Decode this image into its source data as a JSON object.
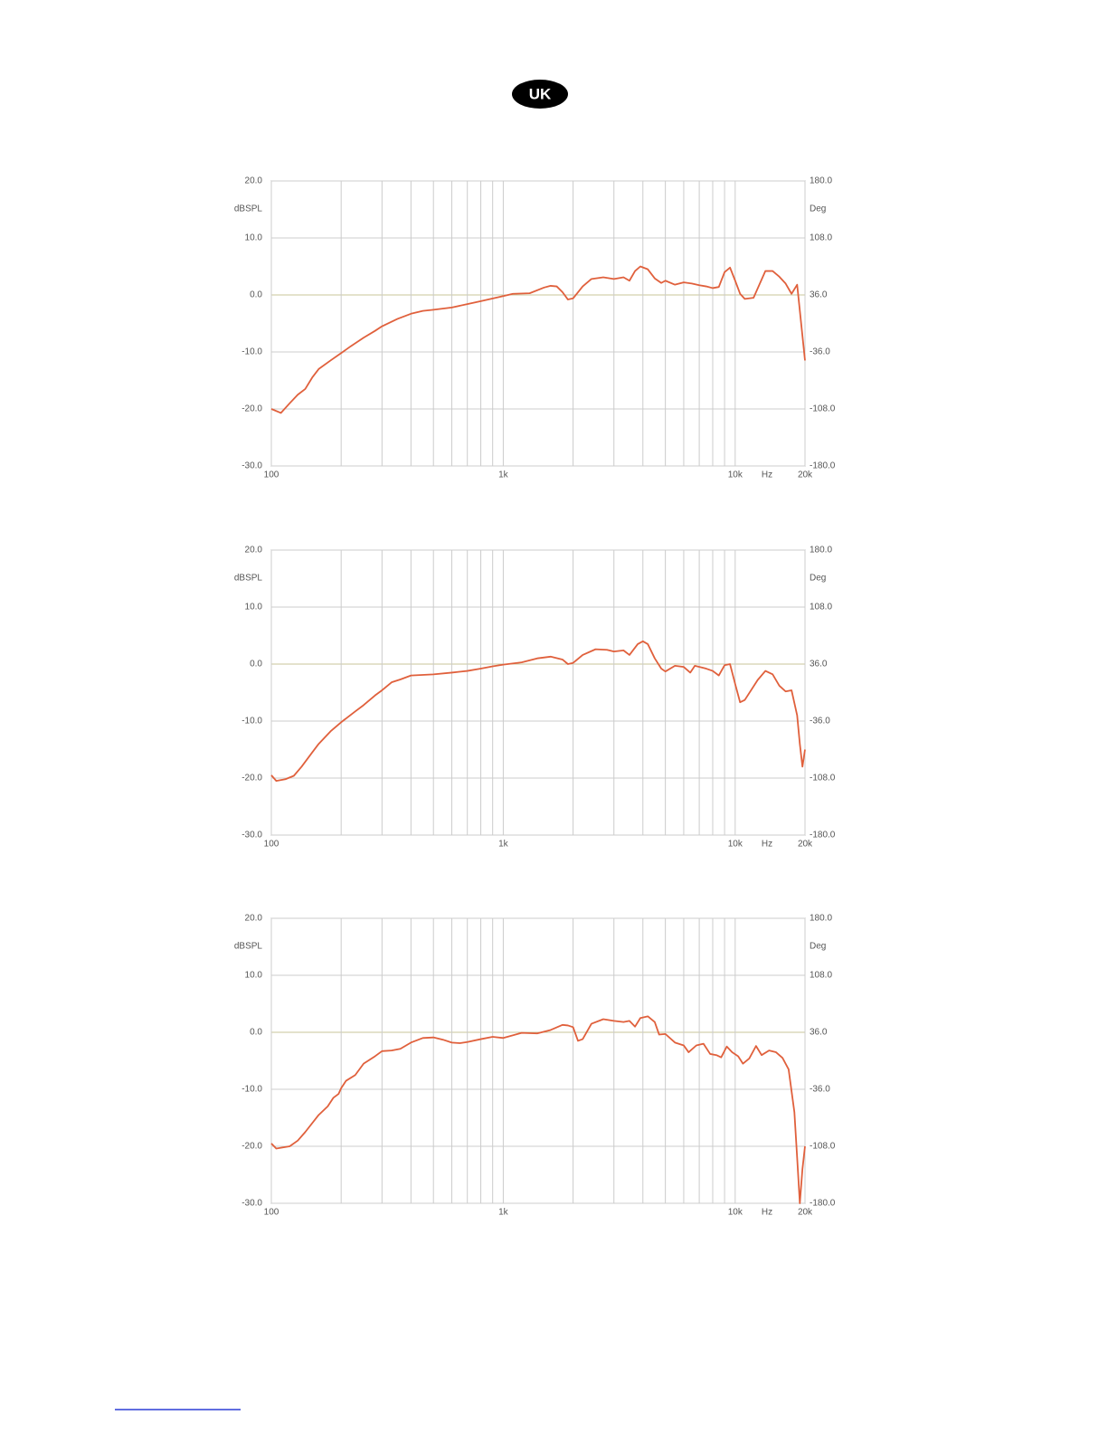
{
  "header": {
    "badge": "UK"
  },
  "chart_data": [
    {
      "type": "line",
      "x_scale": "log",
      "grid": true,
      "x_label": "Hz",
      "y_label": "dBSPL",
      "y2_label": "Deg",
      "xlim": [
        100,
        20000
      ],
      "ylim": [
        -30,
        20
      ],
      "y2lim": [
        -180,
        180
      ],
      "xticks": [
        100,
        {
          "value": 1000,
          "label": "1k"
        },
        {
          "value": 10000,
          "label": "10k"
        },
        {
          "value": 20000,
          "label": "20k"
        }
      ],
      "xminor": [
        200,
        300,
        400,
        500,
        600,
        700,
        800,
        900,
        2000,
        3000,
        4000,
        5000,
        6000,
        7000,
        8000,
        9000
      ],
      "yticks": [
        {
          "value": 20,
          "label": "20.0"
        },
        {
          "value": 10,
          "label": "10.0"
        },
        {
          "value": 0,
          "label": "0.0"
        },
        {
          "value": -10,
          "label": "-10.0"
        },
        {
          "value": -20,
          "label": "-20.0"
        },
        {
          "value": -30,
          "label": "-30.0"
        }
      ],
      "y2ticks": [
        {
          "value": 180,
          "label": "180.0"
        },
        {
          "value": 108,
          "label": "108.0"
        },
        {
          "value": 36,
          "label": "36.0"
        },
        {
          "value": -36,
          "label": "-36.0"
        },
        {
          "value": -108,
          "label": "-108.0"
        },
        {
          "value": -180,
          "label": "-180.0"
        }
      ],
      "color": "#e0603c",
      "x": [
        100,
        110,
        120,
        130,
        140,
        150,
        160,
        180,
        200,
        220,
        250,
        280,
        300,
        350,
        400,
        450,
        500,
        600,
        700,
        800,
        1000,
        1100,
        1300,
        1500,
        1600,
        1700,
        1800,
        1900,
        2000,
        2200,
        2400,
        2700,
        3000,
        3300,
        3500,
        3700,
        3900,
        4200,
        4500,
        4800,
        5000,
        5500,
        6000,
        6500,
        7000,
        7500,
        8000,
        8500,
        9000,
        9500,
        10000,
        10500,
        11000,
        12000,
        13500,
        14500,
        15500,
        16500,
        17500,
        18500,
        20000
      ],
      "values": [
        -20,
        -20.7,
        -19,
        -17.5,
        -16.5,
        -14.5,
        -13,
        -11.5,
        -10.2,
        -9,
        -7.5,
        -6.3,
        -5.5,
        -4.2,
        -3.3,
        -2.8,
        -2.6,
        -2.2,
        -1.6,
        -1.1,
        -0.2,
        0.2,
        0.3,
        1.3,
        1.6,
        1.5,
        0.5,
        -0.8,
        -0.6,
        1.5,
        2.8,
        3.1,
        2.8,
        3.1,
        2.5,
        4.2,
        5,
        4.5,
        2.9,
        2.1,
        2.5,
        1.8,
        2.2,
        2,
        1.7,
        1.5,
        1.2,
        1.4,
        4,
        4.8,
        2.5,
        0.2,
        -0.7,
        -0.5,
        4.2,
        4.2,
        3.2,
        2,
        0.2,
        1.8,
        -11.5
      ]
    },
    {
      "type": "line",
      "x_scale": "log",
      "grid": true,
      "x_label": "Hz",
      "y_label": "dBSPL",
      "y2_label": "Deg",
      "xlim": [
        100,
        20000
      ],
      "ylim": [
        -30,
        20
      ],
      "y2lim": [
        -180,
        180
      ],
      "xticks": [
        100,
        {
          "value": 1000,
          "label": "1k"
        },
        {
          "value": 10000,
          "label": "10k"
        },
        {
          "value": 20000,
          "label": "20k"
        }
      ],
      "xminor": [
        200,
        300,
        400,
        500,
        600,
        700,
        800,
        900,
        2000,
        3000,
        4000,
        5000,
        6000,
        7000,
        8000,
        9000
      ],
      "yticks": [
        {
          "value": 20,
          "label": "20.0"
        },
        {
          "value": 10,
          "label": "10.0"
        },
        {
          "value": 0,
          "label": "0.0"
        },
        {
          "value": -10,
          "label": "-10.0"
        },
        {
          "value": -20,
          "label": "-20.0"
        },
        {
          "value": -30,
          "label": "-30.0"
        }
      ],
      "y2ticks": [
        {
          "value": 180,
          "label": "180.0"
        },
        {
          "value": 108,
          "label": "108.0"
        },
        {
          "value": 36,
          "label": "36.0"
        },
        {
          "value": -36,
          "label": "-36.0"
        },
        {
          "value": -108,
          "label": "-108.0"
        },
        {
          "value": -180,
          "label": "-180.0"
        }
      ],
      "color": "#e0603c",
      "x": [
        100,
        105,
        115,
        125,
        135,
        150,
        160,
        180,
        200,
        230,
        250,
        280,
        300,
        330,
        360,
        400,
        500,
        600,
        700,
        800,
        900,
        1000,
        1200,
        1400,
        1600,
        1800,
        1900,
        2000,
        2200,
        2500,
        2800,
        3000,
        3300,
        3500,
        3800,
        4000,
        4200,
        4500,
        4800,
        5000,
        5500,
        6000,
        6400,
        6700,
        7500,
        8000,
        8500,
        9000,
        9500,
        10000,
        10500,
        11000,
        12500,
        13500,
        14500,
        15500,
        16500,
        17500,
        18500,
        19000,
        19500,
        20000
      ],
      "values": [
        -19.5,
        -20.5,
        -20.2,
        -19.6,
        -18,
        -15.5,
        -14,
        -11.8,
        -10.2,
        -8.3,
        -7.2,
        -5.5,
        -4.6,
        -3.2,
        -2.7,
        -2,
        -1.8,
        -1.5,
        -1.2,
        -0.8,
        -0.4,
        -0.1,
        0.3,
        1,
        1.3,
        0.8,
        0,
        0.2,
        1.6,
        2.6,
        2.5,
        2.2,
        2.4,
        1.6,
        3.5,
        4,
        3.5,
        1,
        -0.8,
        -1.3,
        -0.3,
        -0.5,
        -1.5,
        -0.3,
        -0.8,
        -1.2,
        -2,
        -0.2,
        0,
        -3.5,
        -6.7,
        -6.3,
        -2.8,
        -1.2,
        -1.8,
        -3.8,
        -4.8,
        -4.6,
        -9,
        -14,
        -18,
        -15
      ]
    },
    {
      "type": "line",
      "x_scale": "log",
      "grid": true,
      "x_label": "Hz",
      "y_label": "dBSPL",
      "y2_label": "Deg",
      "xlim": [
        100,
        20000
      ],
      "ylim": [
        -30,
        20
      ],
      "y2lim": [
        -180,
        180
      ],
      "xticks": [
        100,
        {
          "value": 1000,
          "label": "1k"
        },
        {
          "value": 10000,
          "label": "10k"
        },
        {
          "value": 20000,
          "label": "20k"
        }
      ],
      "xminor": [
        200,
        300,
        400,
        500,
        600,
        700,
        800,
        900,
        2000,
        3000,
        4000,
        5000,
        6000,
        7000,
        8000,
        9000
      ],
      "yticks": [
        {
          "value": 20,
          "label": "20.0"
        },
        {
          "value": 10,
          "label": "10.0"
        },
        {
          "value": 0,
          "label": "0.0"
        },
        {
          "value": -10,
          "label": "-10.0"
        },
        {
          "value": -20,
          "label": "-20.0"
        },
        {
          "value": -30,
          "label": "-30.0"
        }
      ],
      "y2ticks": [
        {
          "value": 180,
          "label": "180.0"
        },
        {
          "value": 108,
          "label": "108.0"
        },
        {
          "value": 36,
          "label": "36.0"
        },
        {
          "value": -36,
          "label": "-36.0"
        },
        {
          "value": -108,
          "label": "-108.0"
        },
        {
          "value": -180,
          "label": "-180.0"
        }
      ],
      "color": "#e0603c",
      "x": [
        100,
        105,
        120,
        130,
        140,
        160,
        175,
        185,
        195,
        200,
        210,
        230,
        250,
        280,
        300,
        330,
        360,
        400,
        450,
        500,
        550,
        600,
        650,
        700,
        800,
        900,
        1000,
        1200,
        1400,
        1600,
        1800,
        1900,
        2000,
        2100,
        2200,
        2400,
        2700,
        3000,
        3300,
        3500,
        3700,
        3900,
        4200,
        4500,
        4700,
        5000,
        5500,
        6000,
        6300,
        6800,
        7300,
        7800,
        8300,
        8700,
        9200,
        9700,
        10300,
        10800,
        11500,
        12300,
        13000,
        14000,
        15000,
        16000,
        17000,
        18000,
        18500,
        19000,
        19500,
        20000
      ],
      "values": [
        -19.5,
        -20.4,
        -20,
        -19,
        -17.5,
        -14.5,
        -13,
        -11.5,
        -10.8,
        -9.8,
        -8.5,
        -7.5,
        -5.5,
        -4.2,
        -3.3,
        -3.2,
        -2.9,
        -1.8,
        -1,
        -0.9,
        -1.3,
        -1.8,
        -1.9,
        -1.7,
        -1.2,
        -0.8,
        -1,
        -0.1,
        -0.2,
        0.4,
        1.3,
        1.2,
        0.9,
        -1.5,
        -1.2,
        1.5,
        2.3,
        2,
        1.8,
        2,
        1,
        2.5,
        2.8,
        1.8,
        -0.4,
        -0.3,
        -1.8,
        -2.3,
        -3.5,
        -2.3,
        -2,
        -3.8,
        -4,
        -4.4,
        -2.5,
        -3.5,
        -4.2,
        -5.5,
        -4.6,
        -2.4,
        -4,
        -3.2,
        -3.5,
        -4.5,
        -6.5,
        -14,
        -22,
        -30,
        -24,
        -20
      ]
    }
  ]
}
